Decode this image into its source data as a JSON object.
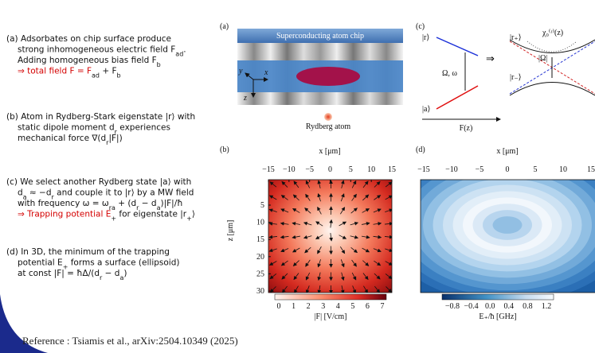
{
  "items": [
    {
      "lines": [
        [
          "(a) Adsorbates on chip surface produce"
        ],
        [
          "strong inhomogeneous electric field F",
          "ad",
          "."
        ],
        [
          "Adding homogeneous bias field F",
          "b"
        ],
        [
          "⇒ total field F = F",
          "ad",
          " + F",
          "b"
        ]
      ]
    },
    {
      "lines": [
        [
          "(b) Atom in Rydberg-Stark eigenstate |r⟩ with"
        ],
        [
          "static dipole moment d",
          "r",
          " experiences"
        ],
        [
          "mechanical force ∇(d",
          "r",
          "|F|)"
        ]
      ]
    },
    {
      "lines": [
        [
          "(c) We select another Rydberg state |a⟩ with"
        ],
        [
          "d",
          "a",
          " ≈ −d",
          "r",
          " and couple it to |r⟩ by a MW field"
        ],
        [
          "with frequency ω = ω",
          "ra",
          " + (d",
          "r",
          " − d",
          "a",
          ")|F|/ħ"
        ],
        [
          "⇒ Trapping potential E",
          "+",
          " for eigenstate |r",
          "+",
          "⟩"
        ]
      ]
    },
    {
      "lines": [
        [
          "(d) In 3D, the minimum of the trapping"
        ],
        [
          "potential E",
          "+",
          " forms a surface (ellipsoid)"
        ],
        [
          "at const |F| = ħΔ/(d",
          "r",
          " − d",
          "a",
          ")"
        ]
      ]
    }
  ],
  "panel_a": {
    "label": "(a)",
    "chip": "Superconducting atom chip",
    "atom": "Rydberg atom",
    "axes": [
      "y",
      "x",
      "z"
    ]
  },
  "panel_c": {
    "label": "(c)",
    "state_r": "|r⟩",
    "state_a": "|a⟩",
    "coupling": "Ω, ω",
    "field": "F(z)",
    "arrow": "⇒",
    "state_rp": "|r₊⟩",
    "state_rm": "|r₋⟩",
    "rabi": "|Ω|",
    "chi": "χ₀⁽ʳ⁾(z)"
  },
  "panel_b": {
    "label": "(b)",
    "xlabel": "x [μm]",
    "xticks": [
      "−15",
      "−10",
      "−5",
      "0",
      "5",
      "10",
      "15"
    ],
    "ylabel": "z [μm]",
    "yticks": [
      "5",
      "10",
      "15",
      "20",
      "25",
      "30"
    ],
    "cbar_ticks": [
      "0",
      "1",
      "2",
      "3",
      "4",
      "5",
      "6",
      "7"
    ],
    "cbar_label": "|F| [V/cm]"
  },
  "panel_d": {
    "label": "(d)",
    "xlabel": "x [μm]",
    "xticks": [
      "−15",
      "−10",
      "−5",
      "0",
      "5",
      "10",
      "15"
    ],
    "cbar_ticks": [
      "−0.8",
      "−0.4",
      "0.0",
      "0.4",
      "0.8",
      "1.2"
    ],
    "cbar_label": "E₊/ħ [GHz]"
  },
  "reference": "Reference : Tsiamis et al., arXiv:2504.10349 (2025)"
}
